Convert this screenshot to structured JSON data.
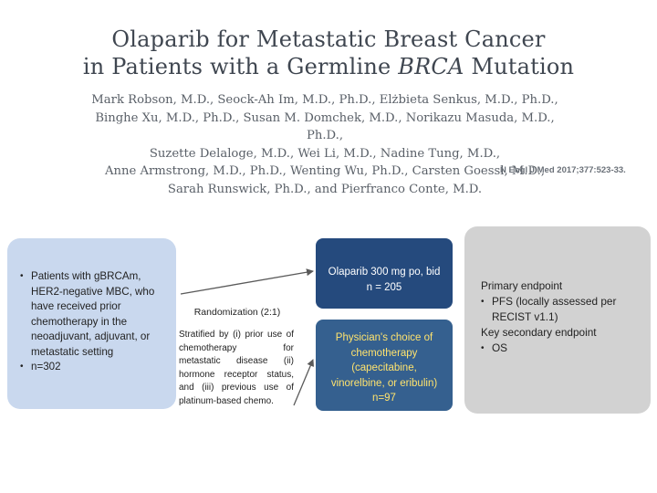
{
  "title": {
    "line1": "Olaparib for Metastatic Breast Cancer",
    "line2_prefix": "in Patients with a Germline ",
    "line2_italic": "BRCA",
    "line2_suffix": " Mutation"
  },
  "authors": [
    "Mark Robson, M.D., Seock-Ah Im, M.D., Ph.D., Elżbieta Senkus, M.D., Ph.D.,",
    "Binghe Xu, M.D., Ph.D., Susan M. Domchek, M.D., Norikazu Masuda, M.D., Ph.D.,",
    "Suzette Delaloge, M.D., Wei Li, M.D., Nadine Tung, M.D.,",
    "Anne Armstrong, M.D., Ph.D., Wenting Wu, Ph.D., Carsten Goessl, M.D.,",
    "Sarah Runswick, Ph.D., and Pierfranco Conte, M.D."
  ],
  "citation": "N Engl J Med 2017;377:523-33.",
  "population": {
    "items": [
      "Patients with gBRCAm, HER2-negative MBC, who have received prior chemotherapy in the neoadjuvant, adjuvant, or metastatic setting",
      "n=302"
    ]
  },
  "randomization": {
    "label": "Randomization (2:1)",
    "stratification": "Stratified by (i) prior use of chemotherapy for metastatic disease (ii) hormone receptor status, and (iii) previous use of platinum-based chemo."
  },
  "arms": {
    "olaparib": {
      "line1": "Olaparib 300 mg po, bid",
      "line2": "n = 205"
    },
    "physician": {
      "lines": [
        "Physician's choice of",
        "chemotherapy",
        "(capecitabine,",
        "vinorelbine, or eribulin)",
        "n=97"
      ]
    }
  },
  "endpoints": {
    "primary_label": "Primary endpoint",
    "primary_items": [
      "PFS (locally assessed per RECIST v1.1)"
    ],
    "secondary_label": "Key secondary endpoint",
    "secondary_items": [
      "OS"
    ]
  },
  "colors": {
    "population_bg": "#c9d8ee",
    "olaparib_bg": "#254a7d",
    "physician_bg": "#35608f",
    "physician_text": "#ffe36e",
    "endpoints_bg": "#d2d2d2"
  }
}
